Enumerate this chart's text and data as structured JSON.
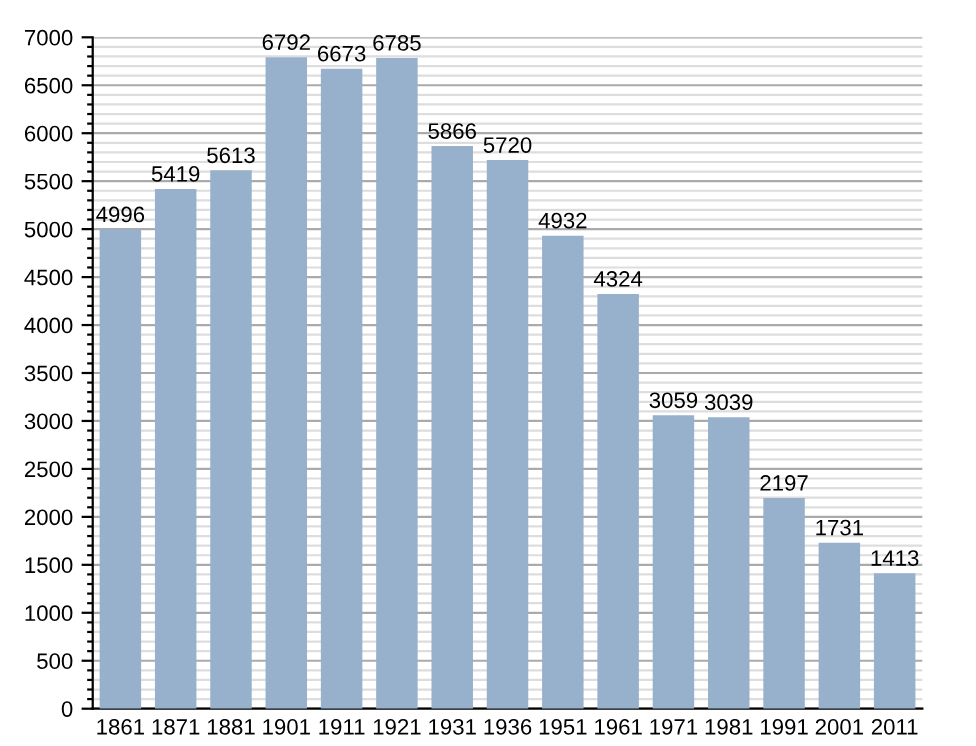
{
  "chart_data": {
    "type": "bar",
    "categories": [
      "1861",
      "1871",
      "1881",
      "1901",
      "1911",
      "1921",
      "1931",
      "1936",
      "1951",
      "1961",
      "1971",
      "1981",
      "1991",
      "2001",
      "2011"
    ],
    "values": [
      4996,
      5419,
      5613,
      6792,
      6673,
      6785,
      5866,
      5720,
      4932,
      4324,
      3059,
      3039,
      2197,
      1731,
      1413
    ],
    "color": "#97b0cc",
    "data_labels": true,
    "ylim": [
      0,
      7000
    ],
    "yticks": [
      0,
      {
        "value": 100,
        "label": null
      },
      {
        "value": 200,
        "label": null
      },
      {
        "value": 300,
        "label": null
      },
      {
        "value": 400,
        "label": null
      },
      500,
      {
        "value": 600,
        "label": null
      },
      {
        "value": 700,
        "label": null
      },
      {
        "value": 800,
        "label": null
      },
      {
        "value": 900,
        "label": null
      },
      1000,
      {
        "value": 1100,
        "label": null
      },
      {
        "value": 1200,
        "label": null
      },
      {
        "value": 1300,
        "label": null
      },
      {
        "value": 1400,
        "label": null
      },
      1500,
      {
        "value": 1600,
        "label": null
      },
      {
        "value": 1700,
        "label": null
      },
      {
        "value": 1800,
        "label": null
      },
      {
        "value": 1900,
        "label": null
      },
      2000,
      {
        "value": 2100,
        "label": null
      },
      {
        "value": 2200,
        "label": null
      },
      {
        "value": 2300,
        "label": null
      },
      {
        "value": 2400,
        "label": null
      },
      2500,
      {
        "value": 2600,
        "label": null
      },
      {
        "value": 2700,
        "label": null
      },
      {
        "value": 2800,
        "label": null
      },
      {
        "value": 2900,
        "label": null
      },
      3000,
      {
        "value": 3100,
        "label": null
      },
      {
        "value": 3200,
        "label": null
      },
      {
        "value": 3300,
        "label": null
      },
      {
        "value": 3400,
        "label": null
      },
      3500,
      {
        "value": 3600,
        "label": null
      },
      {
        "value": 3700,
        "label": null
      },
      {
        "value": 3800,
        "label": null
      },
      {
        "value": 3900,
        "label": null
      },
      4000,
      {
        "value": 4100,
        "label": null
      },
      {
        "value": 4200,
        "label": null
      },
      {
        "value": 4300,
        "label": null
      },
      {
        "value": 4400,
        "label": null
      },
      4500,
      {
        "value": 4600,
        "label": null
      },
      {
        "value": 4700,
        "label": null
      },
      {
        "value": 4800,
        "label": null
      },
      {
        "value": 4900,
        "label": null
      },
      5000,
      {
        "value": 5100,
        "label": null
      },
      {
        "value": 5200,
        "label": null
      },
      {
        "value": 5300,
        "label": null
      },
      {
        "value": 5400,
        "label": null
      },
      5500,
      {
        "value": 5600,
        "label": null
      },
      {
        "value": 5700,
        "label": null
      },
      {
        "value": 5800,
        "label": null
      },
      {
        "value": 5900,
        "label": null
      },
      6000,
      {
        "value": 6100,
        "label": null
      },
      {
        "value": 6200,
        "label": null
      },
      {
        "value": 6300,
        "label": null
      },
      {
        "value": 6400,
        "label": null
      },
      6500,
      {
        "value": 6600,
        "label": null
      },
      {
        "value": 6700,
        "label": null
      },
      {
        "value": 6800,
        "label": null
      },
      {
        "value": 6900,
        "label": null
      },
      7000
    ],
    "grid": "y"
  }
}
